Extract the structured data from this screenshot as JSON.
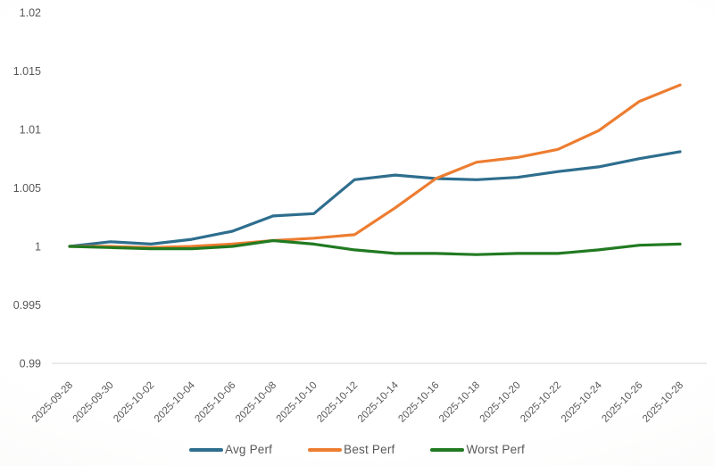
{
  "chart_data": {
    "type": "line",
    "title": "",
    "xlabel": "",
    "ylabel": "",
    "legend_position": "bottom-center",
    "grid": "none (bottom axis line only)",
    "x_axis": {
      "tick_rotation_deg": 45,
      "tick_labels": [
        "2025-09-28",
        "2025-09-30",
        "2025-10-02",
        "2025-10-04",
        "2025-10-06",
        "2025-10-08",
        "2025-10-10",
        "2025-10-12",
        "2025-10-14",
        "2025-10-16",
        "2025-10-18",
        "2025-10-20",
        "2025-10-22",
        "2025-10-24",
        "2025-10-26",
        "2025-10-28"
      ]
    },
    "y_axis": {
      "ylim": [
        0.99,
        1.02
      ],
      "tick_values": [
        0.99,
        0.995,
        1,
        1.005,
        1.01,
        1.015,
        1.02
      ],
      "tick_labels": [
        "0.99",
        "0.995",
        "1",
        "1.005",
        "1.01",
        "1.015",
        "1.02"
      ]
    },
    "series": [
      {
        "name": "Avg Perf",
        "color": "#2e6e8e",
        "values": [
          1.0,
          1.0004,
          1.0002,
          1.0006,
          1.0013,
          1.0026,
          1.0028,
          1.0057,
          1.0061,
          1.0058,
          1.0057,
          1.0059,
          1.0064,
          1.0068,
          1.0075,
          1.0081
        ]
      },
      {
        "name": "Best Perf",
        "color": "#ed7d31",
        "values": [
          1.0,
          1.0,
          0.9999,
          1.0,
          1.0002,
          1.0005,
          1.0007,
          1.001,
          1.0033,
          1.0058,
          1.0072,
          1.0076,
          1.0083,
          1.0099,
          1.0124,
          1.0138
        ]
      },
      {
        "name": "Worst Perf",
        "color": "#217a21",
        "values": [
          1.0,
          0.9999,
          0.9998,
          0.9998,
          1.0,
          1.0005,
          1.0002,
          0.9997,
          0.9994,
          0.9994,
          0.9993,
          0.9994,
          0.9994,
          0.9997,
          1.0001,
          1.0002
        ]
      }
    ]
  },
  "style": {
    "axis_line_color": "#d6d6d6",
    "tick_text_color": "#595959",
    "line_width": 3.2
  }
}
